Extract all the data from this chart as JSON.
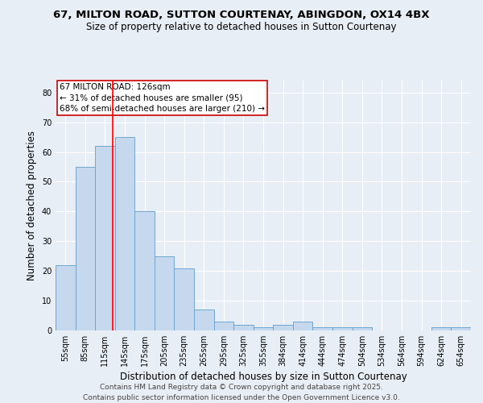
{
  "title_line1": "67, MILTON ROAD, SUTTON COURTENAY, ABINGDON, OX14 4BX",
  "title_line2": "Size of property relative to detached houses in Sutton Courtenay",
  "xlabel": "Distribution of detached houses by size in Sutton Courtenay",
  "ylabel": "Number of detached properties",
  "categories": [
    "55sqm",
    "85sqm",
    "115sqm",
    "145sqm",
    "175sqm",
    "205sqm",
    "235sqm",
    "265sqm",
    "295sqm",
    "325sqm",
    "355sqm",
    "384sqm",
    "414sqm",
    "444sqm",
    "474sqm",
    "504sqm",
    "534sqm",
    "564sqm",
    "594sqm",
    "624sqm",
    "654sqm"
  ],
  "values": [
    22,
    55,
    62,
    65,
    40,
    25,
    21,
    7,
    3,
    2,
    1,
    2,
    3,
    1,
    1,
    1,
    0,
    0,
    0,
    1,
    1
  ],
  "bar_color": "#c5d8ee",
  "bar_edge_color": "#6ea6d2",
  "red_line_x": 2.37,
  "red_line_label": "67 MILTON ROAD: 126sqm",
  "annotation_line2": "← 31% of detached houses are smaller (95)",
  "annotation_line3": "68% of semi-detached houses are larger (210) →",
  "annotation_box_facecolor": "#ffffff",
  "annotation_box_edgecolor": "#cc0000",
  "ylim": [
    0,
    84
  ],
  "yticks": [
    0,
    10,
    20,
    30,
    40,
    50,
    60,
    70,
    80
  ],
  "background_color": "#e8eef5",
  "plot_bg_color": "#e8eef5",
  "title_fontsize": 9.5,
  "subtitle_fontsize": 8.5,
  "axis_label_fontsize": 8.5,
  "tick_fontsize": 7,
  "footer_fontsize": 6.5,
  "annot_fontsize": 7.5,
  "footer_line1": "Contains HM Land Registry data © Crown copyright and database right 2025.",
  "footer_line2": "Contains public sector information licensed under the Open Government Licence v3.0."
}
